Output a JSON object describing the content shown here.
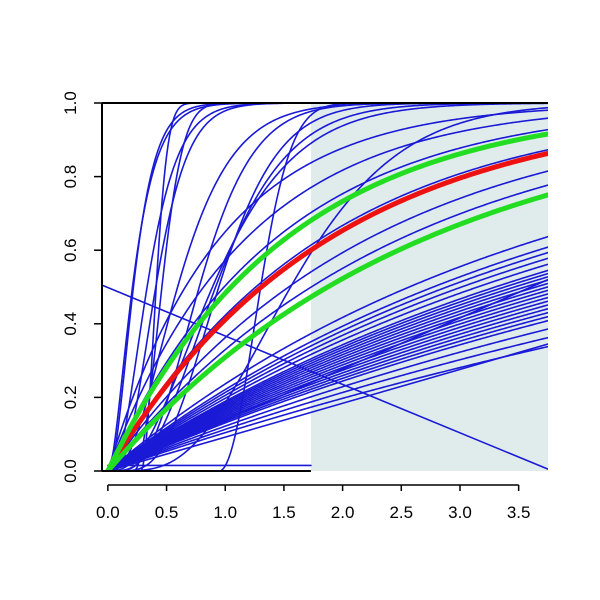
{
  "chart_data": {
    "type": "line",
    "title": "",
    "xlabel": "",
    "ylabel": "",
    "xlim": [
      -0.05,
      3.75
    ],
    "ylim": [
      0,
      1
    ],
    "x_ticks": [
      "0.0",
      "0.5",
      "1.0",
      "1.5",
      "2.0",
      "2.5",
      "3.0",
      "3.5"
    ],
    "y_ticks": [
      "0.0",
      "0.2",
      "0.4",
      "0.6",
      "0.8",
      "1.0"
    ],
    "shaded_region": {
      "x": [
        1.73,
        3.75
      ],
      "y": [
        0,
        1
      ],
      "color": "#e0ecec"
    },
    "colors": {
      "blue": "#1a1ad6",
      "green": "#22dd22",
      "red": "#ee1111"
    },
    "series": [
      {
        "kind": "exp",
        "rate": 0.27,
        "color": "blue"
      },
      {
        "kind": "exp",
        "rate": 0.25,
        "color": "blue"
      },
      {
        "kind": "exp",
        "rate": 0.24,
        "color": "blue"
      },
      {
        "kind": "exp",
        "rate": 0.23,
        "color": "blue"
      },
      {
        "kind": "exp",
        "rate": 0.22,
        "color": "blue"
      },
      {
        "kind": "exp",
        "rate": 0.21,
        "color": "blue"
      },
      {
        "kind": "exp",
        "rate": 0.205,
        "color": "blue"
      },
      {
        "kind": "exp",
        "rate": 0.2,
        "color": "blue"
      },
      {
        "kind": "exp",
        "rate": 0.195,
        "color": "blue"
      },
      {
        "kind": "exp",
        "rate": 0.19,
        "color": "blue"
      },
      {
        "kind": "exp",
        "rate": 0.185,
        "color": "blue"
      },
      {
        "kind": "exp",
        "rate": 0.18,
        "color": "blue"
      },
      {
        "kind": "exp",
        "rate": 0.175,
        "color": "blue"
      },
      {
        "kind": "exp",
        "rate": 0.17,
        "color": "blue"
      },
      {
        "kind": "exp",
        "rate": 0.165,
        "color": "blue"
      },
      {
        "kind": "exp",
        "rate": 0.16,
        "color": "blue"
      },
      {
        "kind": "exp",
        "rate": 0.155,
        "color": "blue"
      },
      {
        "kind": "exp",
        "rate": 0.15,
        "color": "blue"
      },
      {
        "kind": "exp",
        "rate": 0.145,
        "color": "blue"
      },
      {
        "kind": "exp",
        "rate": 0.14,
        "color": "blue"
      },
      {
        "kind": "exp",
        "rate": 0.13,
        "color": "blue"
      },
      {
        "kind": "exp",
        "rate": 0.12,
        "color": "blue"
      },
      {
        "kind": "exp",
        "rate": 0.11,
        "color": "blue"
      },
      {
        "kind": "exp",
        "rate": 0.4,
        "color": "blue"
      },
      {
        "kind": "exp",
        "rate": 0.45,
        "color": "blue"
      },
      {
        "kind": "exp",
        "rate": 0.55,
        "color": "blue"
      },
      {
        "kind": "exp",
        "rate": 0.7,
        "color": "blue"
      },
      {
        "kind": "exp",
        "rate": 0.85,
        "color": "blue"
      },
      {
        "kind": "exp",
        "rate": 1.05,
        "color": "blue"
      },
      {
        "kind": "gamma_cdf",
        "shape": 2,
        "rate": 8,
        "color": "blue"
      },
      {
        "kind": "gamma_cdf",
        "shape": 2.5,
        "rate": 10,
        "color": "blue"
      },
      {
        "kind": "gamma_cdf",
        "shape": 3,
        "rate": 8,
        "color": "blue"
      },
      {
        "kind": "gamma_cdf",
        "shape": 4,
        "rate": 9,
        "color": "blue"
      },
      {
        "kind": "gamma_cdf",
        "shape": 3,
        "rate": 4.5,
        "color": "blue"
      },
      {
        "kind": "gamma_cdf",
        "shape": 4,
        "rate": 4,
        "color": "blue"
      },
      {
        "kind": "gamma_cdf",
        "shape": 6,
        "rate": 6,
        "color": "blue"
      },
      {
        "kind": "gamma_cdf",
        "shape": 5,
        "rate": 3,
        "color": "blue"
      },
      {
        "kind": "gamma_cdf",
        "shape": 3,
        "rate": 3,
        "color": "blue"
      },
      {
        "kind": "gamma_cdf",
        "shape": 5,
        "rate": 6,
        "color": "blue"
      },
      {
        "kind": "steep",
        "x0": 0.28,
        "slope": 10,
        "color": "blue"
      },
      {
        "kind": "steep",
        "x0": 0.22,
        "slope": 3,
        "color": "blue"
      },
      {
        "kind": "steep",
        "x0": 0.95,
        "slope": 1.4,
        "color": "blue"
      },
      {
        "kind": "line",
        "p1": [
          -0.05,
          0.505
        ],
        "p2": [
          3.75,
          0.005
        ],
        "color": "blue"
      },
      {
        "kind": "line",
        "p1": [
          0,
          0
        ],
        "p2": [
          3.75,
          0.52
        ],
        "color": "blue"
      },
      {
        "kind": "line",
        "p1": [
          0,
          0
        ],
        "p2": [
          3.75,
          0.345
        ],
        "color": "blue"
      },
      {
        "kind": "line",
        "p1": [
          0,
          0.015
        ],
        "p2": [
          1.73,
          0.015
        ],
        "color": "blue"
      },
      {
        "kind": "exp",
        "rate": 0.53,
        "color": "red"
      },
      {
        "kind": "exp",
        "rate": 0.66,
        "color": "green"
      },
      {
        "kind": "exp",
        "rate": 0.37,
        "color": "green"
      }
    ]
  }
}
